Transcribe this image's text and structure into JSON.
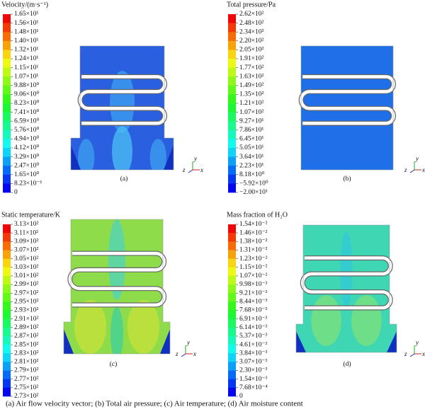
{
  "panels": [
    {
      "title": "Velocity/(m·s⁻¹)",
      "label": "(a)",
      "ticks": [
        "1.65×10¹",
        "1.56×10¹",
        "1.48×10¹",
        "1.40×10¹",
        "1.32×10¹",
        "1.24×10¹",
        "1.15×10¹",
        "1.07×10¹",
        "9.88×10⁰",
        "9.06×10⁰",
        "8.23×10⁰",
        "7.41×10⁰",
        "6.59×10⁰",
        "5.76×10⁰",
        "4.94×10⁰",
        "4.12×10⁰",
        "3.29×10⁰",
        "2.47×10⁰",
        "1.65×10⁰",
        "8.23×10⁻¹",
        "0"
      ]
    },
    {
      "title": "Total pressure/Pa",
      "label": "(b)",
      "ticks": [
        "2.62×10²",
        "2.48×10²",
        "2.34×10²",
        "2.20×10²",
        "2.05×10²",
        "1.91×10²",
        "1.77×10²",
        "1.63×10²",
        "1.49×10²",
        "1.35×10²",
        "1.21×10²",
        "1.07×10²",
        "9.27×10¹",
        "7.86×10¹",
        "6.45×10¹",
        "5.05×10¹",
        "3.64×10¹",
        "2.23×10¹",
        "8.18×10⁰",
        "−5.92×10⁰",
        "−2.00×10¹"
      ]
    },
    {
      "title": "Static temperature/K",
      "label": "(c)",
      "ticks": [
        "3.13×10²",
        "3.11×10²",
        "3.09×10²",
        "3.07×10²",
        "3.05×10²",
        "3.03×10²",
        "3.01×10²",
        "2.99×10²",
        "2.97×10²",
        "2.95×10²",
        "2.93×10²",
        "2.91×10²",
        "2.89×10²",
        "2.87×10²",
        "2.85×10²",
        "2.83×10²",
        "2.81×10²",
        "2.79×10²",
        "2.77×10²",
        "2.75×10²",
        "2.73×10²"
      ]
    },
    {
      "title": "Mass fraction of H₂O",
      "label": "(d)",
      "ticks": [
        "1.54×10⁻²",
        "1.46×10⁻²",
        "1.38×10⁻²",
        "1.31×10⁻²",
        "1.23×10⁻²",
        "1.15×10⁻²",
        "1.07×10⁻²",
        "9.98×10⁻³",
        "9.21×10⁻³",
        "8.44×10⁻³",
        "7.68×10⁻³",
        "6.91×10⁻³",
        "6.14×10⁻³",
        "5.37×10⁻³",
        "4.61×10⁻³",
        "3.84×10⁻³",
        "3.07×10⁻³",
        "2.30×10⁻³",
        "1.54×10⁻³",
        "7.68×10⁻⁴",
        "0"
      ]
    }
  ],
  "axes": {
    "y": "y",
    "z": "z",
    "x": "x"
  },
  "caption": "(a) Air flow velocity vector; (b) Total air pressure; (c) Air temperature; (d) Air moisture content"
}
